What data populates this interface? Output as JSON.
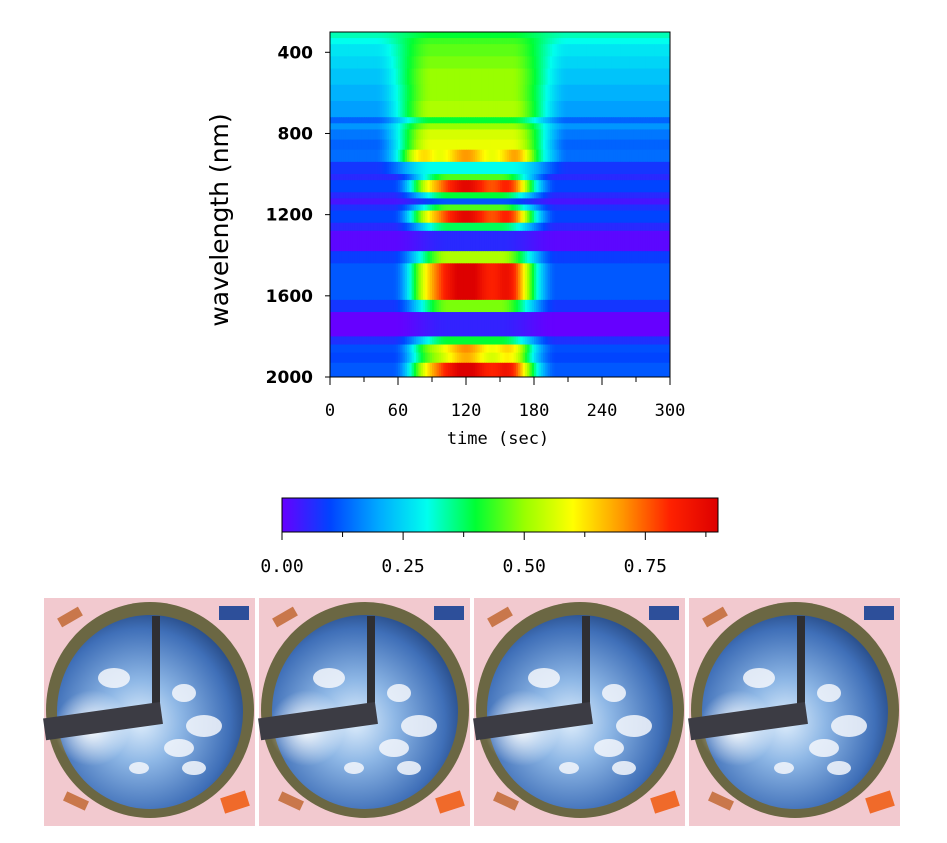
{
  "chart_data": [
    {
      "type": "heatmap",
      "title": "",
      "xlabel": "time (sec)",
      "ylabel": "wavelength (nm)",
      "x_ticks": [
        "0",
        "60",
        "120",
        "180",
        "240",
        "300"
      ],
      "y_ticks": [
        "400",
        "800",
        "1200",
        "1600",
        "2000"
      ],
      "xlim": [
        0,
        300
      ],
      "ylim": [
        2000,
        300
      ],
      "time_windows": [
        {
          "t0": 65,
          "t1": 185
        },
        {
          "t0": 80,
          "t1": 175
        }
      ],
      "rows": [
        {
          "w0": 300,
          "w1": 330,
          "base": 0.33,
          "peak": 0.4,
          "win": 0
        },
        {
          "w0": 330,
          "w1": 360,
          "base": 0.3,
          "peak": 0.44,
          "win": 0
        },
        {
          "w0": 360,
          "w1": 420,
          "base": 0.27,
          "peak": 0.46,
          "win": 0
        },
        {
          "w0": 420,
          "w1": 480,
          "base": 0.25,
          "peak": 0.48,
          "win": 0
        },
        {
          "w0": 480,
          "w1": 560,
          "base": 0.23,
          "peak": 0.5,
          "win": 0
        },
        {
          "w0": 560,
          "w1": 640,
          "base": 0.21,
          "peak": 0.5,
          "win": 0
        },
        {
          "w0": 640,
          "w1": 720,
          "base": 0.19,
          "peak": 0.52,
          "win": 0
        },
        {
          "w0": 720,
          "w1": 750,
          "base": 0.13,
          "peak": 0.4,
          "win": 0
        },
        {
          "w0": 750,
          "w1": 780,
          "base": 0.18,
          "peak": 0.5,
          "win": 0
        },
        {
          "w0": 780,
          "w1": 830,
          "base": 0.15,
          "peak": 0.56,
          "win": 0
        },
        {
          "w0": 830,
          "w1": 880,
          "base": 0.13,
          "peak": 0.58,
          "win": 0
        },
        {
          "w0": 880,
          "w1": 940,
          "base": 0.14,
          "peak": 0.64,
          "win": 0
        },
        {
          "w0": 940,
          "w1": 1000,
          "base": 0.08,
          "peak": 0.3,
          "win": 0
        },
        {
          "w0": 1000,
          "w1": 1030,
          "base": 0.06,
          "peak": 0.45,
          "win": 1
        },
        {
          "w0": 1030,
          "w1": 1090,
          "base": 0.1,
          "peak": 0.82,
          "win": 1
        },
        {
          "w0": 1090,
          "w1": 1120,
          "base": 0.06,
          "peak": 0.4,
          "win": 1
        },
        {
          "w0": 1120,
          "w1": 1150,
          "base": 0.03,
          "peak": 0.12,
          "win": 1
        },
        {
          "w0": 1150,
          "w1": 1180,
          "base": 0.07,
          "peak": 0.45,
          "win": 1
        },
        {
          "w0": 1180,
          "w1": 1240,
          "base": 0.1,
          "peak": 0.82,
          "win": 1
        },
        {
          "w0": 1240,
          "w1": 1280,
          "base": 0.06,
          "peak": 0.38,
          "win": 1
        },
        {
          "w0": 1280,
          "w1": 1380,
          "base": 0.01,
          "peak": 0.06,
          "win": 1
        },
        {
          "w0": 1380,
          "w1": 1440,
          "base": 0.09,
          "peak": 0.52,
          "win": 1
        },
        {
          "w0": 1440,
          "w1": 1620,
          "base": 0.12,
          "peak": 0.87,
          "win": 1
        },
        {
          "w0": 1620,
          "w1": 1680,
          "base": 0.08,
          "peak": 0.48,
          "win": 1
        },
        {
          "w0": 1680,
          "w1": 1800,
          "base": 0.0,
          "peak": 0.05,
          "win": 1
        },
        {
          "w0": 1800,
          "w1": 1840,
          "base": 0.07,
          "peak": 0.4,
          "win": 1
        },
        {
          "w0": 1840,
          "w1": 1880,
          "base": 0.11,
          "peak": 0.65,
          "win": 1
        },
        {
          "w0": 1880,
          "w1": 1930,
          "base": 0.1,
          "peak": 0.62,
          "win": 1
        },
        {
          "w0": 1930,
          "w1": 2000,
          "base": 0.12,
          "peak": 0.86,
          "win": 1
        }
      ]
    },
    {
      "type": "colorbar",
      "tick_labels": [
        "0.00",
        "0.25",
        "0.50",
        "0.75"
      ],
      "tick_values": [
        0.0,
        0.25,
        0.5,
        0.75
      ],
      "range": [
        0,
        0.9
      ],
      "colors": [
        "#6600ff",
        "#0044ff",
        "#00aaff",
        "#00ffee",
        "#00ff33",
        "#99ff00",
        "#ffff00",
        "#ff9900",
        "#ff2200",
        "#dd0000"
      ]
    }
  ],
  "photos": [
    {
      "label": "sky-camera-image-1"
    },
    {
      "label": "sky-camera-image-2"
    },
    {
      "label": "sky-camera-image-3"
    },
    {
      "label": "sky-camera-image-4"
    }
  ]
}
